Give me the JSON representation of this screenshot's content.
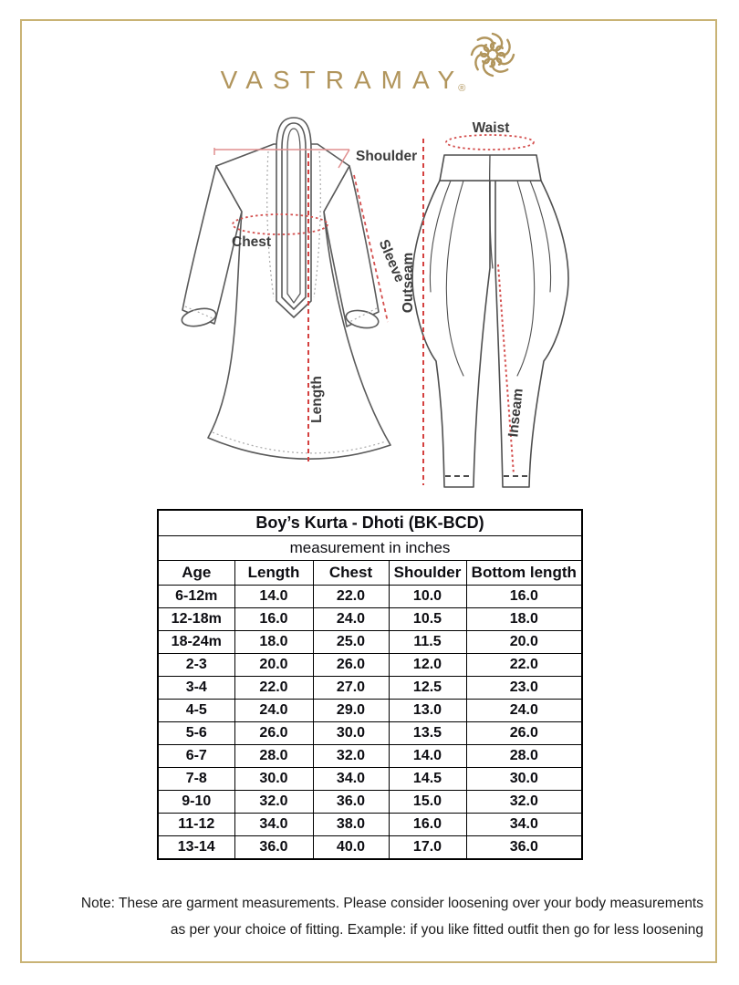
{
  "brand": {
    "logo_text": "VASTRAMAY",
    "registered_mark": "®",
    "ornament_icon": "floral-curl-mandala",
    "gold_color": "#b1955c"
  },
  "diagram": {
    "kurta": {
      "shoulder_label": "Shoulder",
      "chest_label": "Chest",
      "sleeve_label": "Sleeve",
      "length_label": "Length"
    },
    "dhoti": {
      "waist_label": "Waist",
      "outseam_label": "Outseam",
      "inseam_label": "Inseam"
    },
    "measure_line_color": "#d4403f"
  },
  "chart_data": {
    "type": "table",
    "title": "Boy’s Kurta - Dhoti (BK-BCD)",
    "subtitle": "measurement in inches",
    "columns": [
      "Age",
      "Length",
      "Chest",
      "Shoulder",
      "Bottom length"
    ],
    "rows": [
      [
        "6-12m",
        "14.0",
        "22.0",
        "10.0",
        "16.0"
      ],
      [
        "12-18m",
        "16.0",
        "24.0",
        "10.5",
        "18.0"
      ],
      [
        "18-24m",
        "18.0",
        "25.0",
        "11.5",
        "20.0"
      ],
      [
        "2-3",
        "20.0",
        "26.0",
        "12.0",
        "22.0"
      ],
      [
        "3-4",
        "22.0",
        "27.0",
        "12.5",
        "23.0"
      ],
      [
        "4-5",
        "24.0",
        "29.0",
        "13.0",
        "24.0"
      ],
      [
        "5-6",
        "26.0",
        "30.0",
        "13.5",
        "26.0"
      ],
      [
        "6-7",
        "28.0",
        "32.0",
        "14.0",
        "28.0"
      ],
      [
        "7-8",
        "30.0",
        "34.0",
        "14.5",
        "30.0"
      ],
      [
        "9-10",
        "32.0",
        "36.0",
        "15.0",
        "32.0"
      ],
      [
        "11-12",
        "34.0",
        "38.0",
        "16.0",
        "34.0"
      ],
      [
        "13-14",
        "36.0",
        "40.0",
        "17.0",
        "36.0"
      ]
    ]
  },
  "note": {
    "line1": "Note: These are garment measurements. Please consider loosening over your body measurements",
    "line2": "as per your choice of fitting. Example: if you like fitted outfit then go for less loosening"
  }
}
